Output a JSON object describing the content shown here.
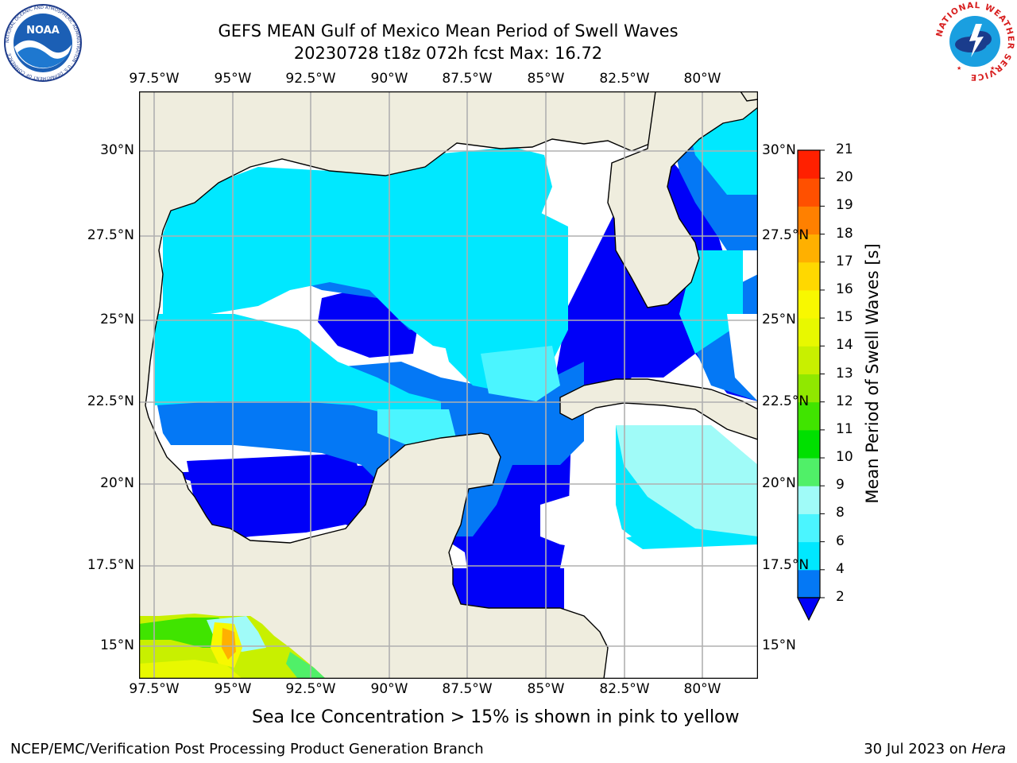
{
  "title": {
    "line1": "GEFS MEAN Gulf of Mexico Mean Period of Swell Waves",
    "line2": "20230728 t18z 072h fcst   Max: 16.72"
  },
  "map": {
    "lon_labels": [
      "97.5°W",
      "95°W",
      "92.5°W",
      "90°W",
      "87.5°W",
      "85°W",
      "82.5°W",
      "80°W"
    ],
    "lat_labels": [
      "30°N",
      "27.5°N",
      "25°N",
      "22.5°N",
      "20°N",
      "17.5°N",
      "15°N"
    ],
    "land_color": "#efedde",
    "no_data_color": "#ffffff",
    "gridlines": true
  },
  "colorbar": {
    "title": "Mean Period of Swell Waves [s]",
    "tick_labels": [
      "2",
      "4",
      "6",
      "8",
      "9",
      "10",
      "11",
      "12",
      "13",
      "14",
      "15",
      "16",
      "17",
      "18",
      "19",
      "20",
      "21"
    ],
    "colors": [
      "#0000f8",
      "#0478f5",
      "#00e8ff",
      "#4bf5ff",
      "#a0fbf8",
      "#50f068",
      "#00e000",
      "#40e400",
      "#90e800",
      "#c8f000",
      "#e8f800",
      "#f8f800",
      "#ffd800",
      "#ffb000",
      "#ff8000",
      "#ff5000",
      "#ff2000",
      "#ff0000"
    ],
    "extend": "min"
  },
  "note": "Sea Ice Concentration > 15% is shown in pink to yellow",
  "footer": {
    "left": "NCEP/EMC/Verification Post Processing Product Generation Branch",
    "right_prefix": "30 Jul 2023 on ",
    "right_host": "Hera"
  },
  "logos": {
    "noaa": "NOAA",
    "noaa_ring": "NATIONAL OCEANIC AND ATMOSPHERIC ADMINISTRATION · U.S. DEPARTMENT OF COMMERCE",
    "nws_ring": "NATIONAL WEATHER SERVICE"
  }
}
